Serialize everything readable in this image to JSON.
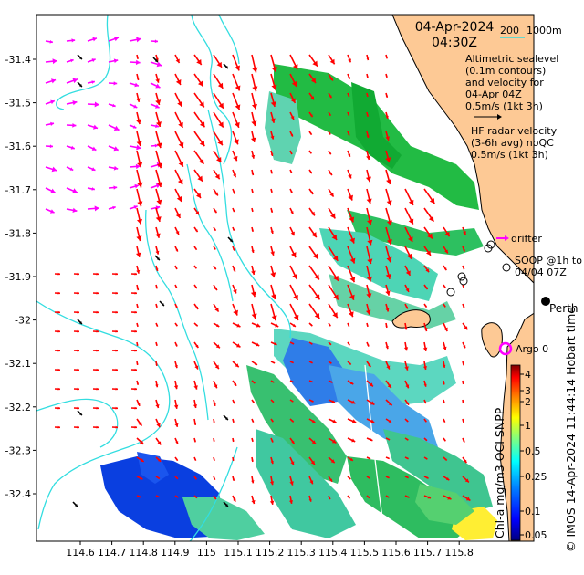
{
  "header": {
    "date": "04-Apr-2024",
    "time": "04:30Z",
    "scale_200": "200",
    "scale_1000": "1000m"
  },
  "legend": {
    "altimetric": [
      "Altimetric sealevel",
      "(0.1m contours)",
      "and velocity for",
      "04-Apr 04Z",
      "0.5m/s (1kt 3h)"
    ],
    "hf_radar": [
      "HF radar velocity",
      "(3-6h avg) noQC",
      "0.5m/s (1kt 3h)"
    ],
    "drifter": "drifter",
    "soop": [
      "SOOP @1h to",
      "04/04 07Z"
    ],
    "argo": "Argo 0",
    "city": "Perth"
  },
  "colorbar": {
    "title": "Chl-a mg/m3 OCI SNPP",
    "ticks": [
      "4",
      "3",
      "2",
      "1",
      "0.5",
      "0.25",
      "0.1",
      "0.05"
    ],
    "colors": [
      "#00007f",
      "#0000ff",
      "#0080ff",
      "#00ffff",
      "#80ff80",
      "#ffff00",
      "#ff8000",
      "#ff0000",
      "#7f0000"
    ]
  },
  "credit": "© IMOS 14-Apr-2024 11:44:14 Hobart time",
  "axes": {
    "x_ticks": [
      "114.6",
      "114.7",
      "114.8",
      "114.9",
      "115",
      "115.1",
      "115.2",
      "115.3",
      "115.4",
      "115.5",
      "115.6",
      "115.7",
      "115.8"
    ],
    "y_ticks": [
      "-31.4",
      "-31.5",
      "-31.6",
      "-31.7",
      "-31.8",
      "-31.9",
      "-32",
      "-32.1",
      "-32.2",
      "-32.3",
      "-32.4"
    ],
    "lon_range": [
      114.52,
      115.86
    ],
    "lat_range": [
      -32.51,
      -31.31
    ]
  },
  "colors": {
    "land": "#fdc995",
    "contour": "#33dde0",
    "altimetry_arrow": "#ff00ff",
    "radar_arrow": "#ff0000",
    "drifter_arrow": "#000000"
  }
}
